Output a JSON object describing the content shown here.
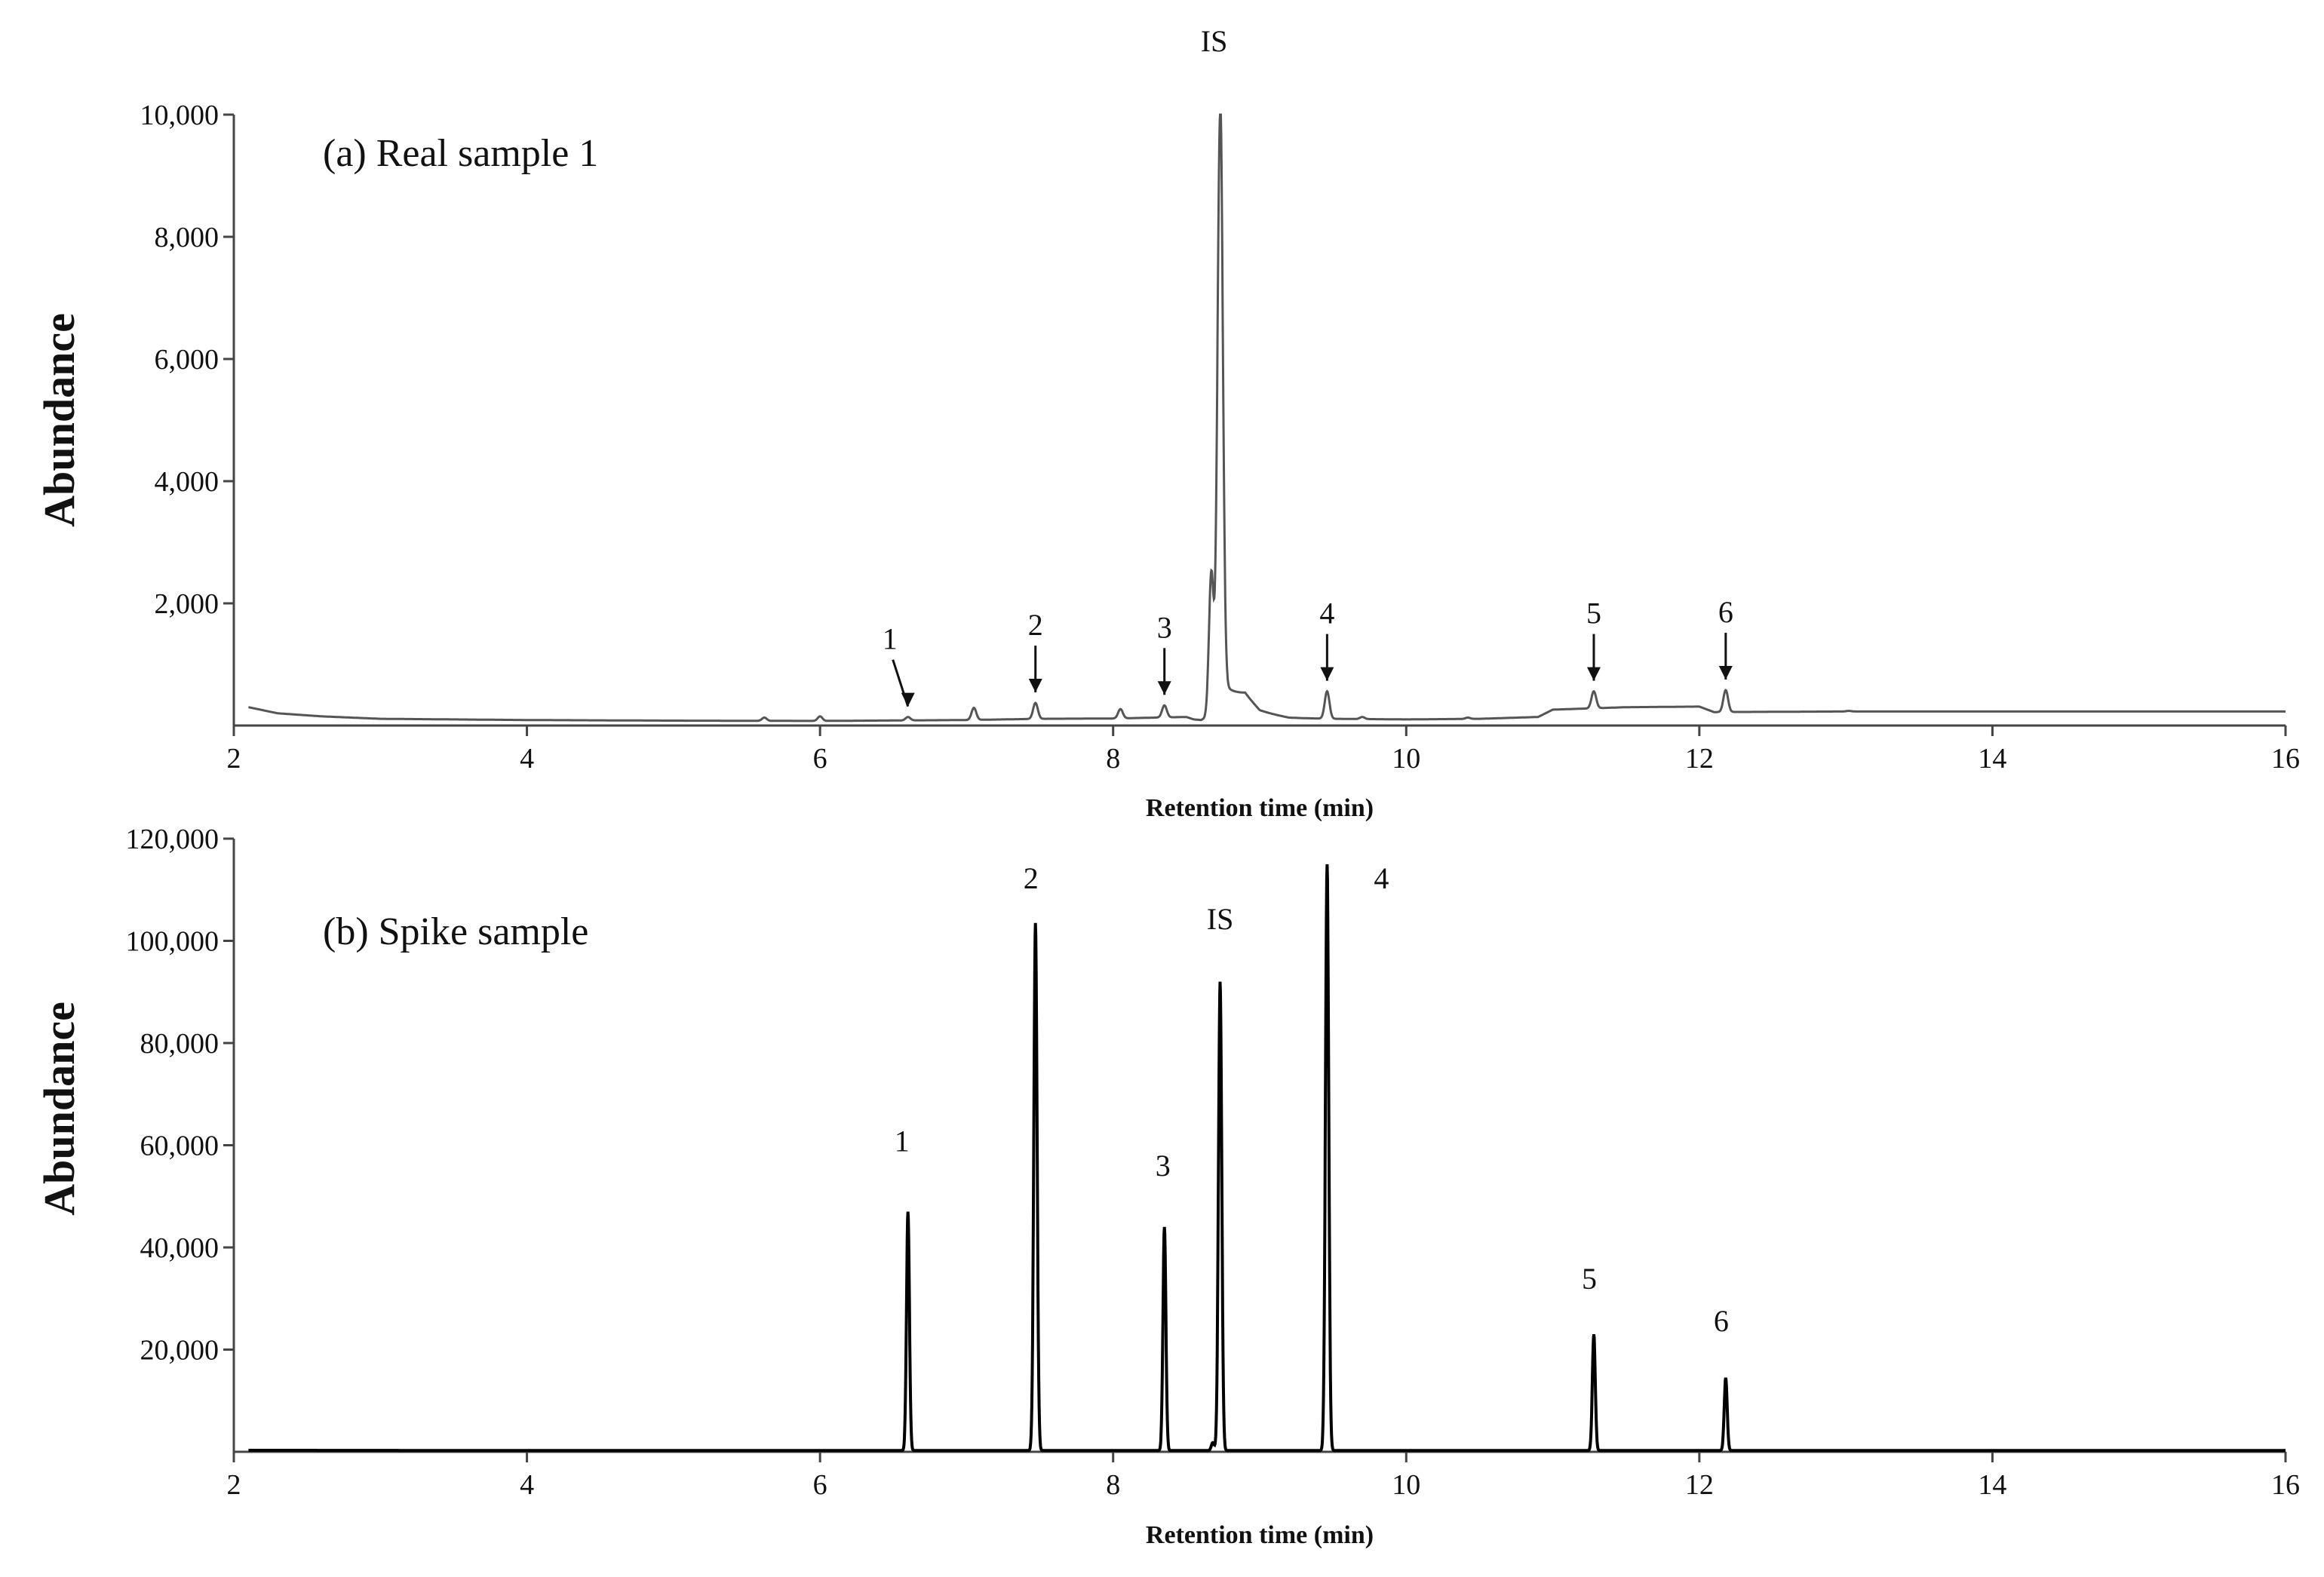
{
  "chart_data": [
    {
      "type": "line",
      "title": "(a) Real sample 1",
      "xlabel": "Retention time (min)",
      "ylabel": "Abundance",
      "xlim": [
        2,
        16
      ],
      "ylim": [
        0,
        10000
      ],
      "x_ticks": [
        "2",
        "4",
        "6",
        "8",
        "10",
        "12",
        "14",
        "16"
      ],
      "y_ticks": [
        "2,000",
        "4,000",
        "6,000",
        "8,000",
        "10,000"
      ],
      "grid": false,
      "baseline": [
        [
          2.1,
          300
        ],
        [
          2.3,
          200
        ],
        [
          2.6,
          150
        ],
        [
          3,
          110
        ],
        [
          4,
          90
        ],
        [
          5,
          80
        ],
        [
          6,
          75
        ],
        [
          7,
          90
        ],
        [
          7.5,
          110
        ],
        [
          8,
          115
        ],
        [
          8.5,
          140
        ],
        [
          8.55,
          100
        ],
        [
          8.6,
          90
        ],
        [
          8.9,
          420
        ],
        [
          9.0,
          200
        ],
        [
          9.2,
          120
        ],
        [
          9.5,
          110
        ],
        [
          10,
          100
        ],
        [
          10.5,
          110
        ],
        [
          10.9,
          140
        ],
        [
          11.0,
          260
        ],
        [
          11.5,
          300
        ],
        [
          12.0,
          310
        ],
        [
          12.1,
          220
        ],
        [
          13,
          230
        ],
        [
          14,
          230
        ],
        [
          15,
          230
        ],
        [
          16,
          230
        ]
      ],
      "peaks": [
        {
          "label": "1",
          "x": 6.6,
          "y": 140,
          "arrow": true
        },
        {
          "label": "2",
          "x": 7.47,
          "y": 370,
          "arrow": true
        },
        {
          "label": "3",
          "x": 8.35,
          "y": 330,
          "arrow": true
        },
        {
          "label": "IS",
          "x": 8.73,
          "y": 10000,
          "arrow": false
        },
        {
          "label": "4",
          "x": 9.46,
          "y": 560,
          "arrow": true
        },
        {
          "label": "5",
          "x": 11.28,
          "y": 560,
          "arrow": true
        },
        {
          "label": "6",
          "x": 12.18,
          "y": 580,
          "arrow": true
        }
      ],
      "minor_peaks": [
        {
          "x": 5.62,
          "y": 130
        },
        {
          "x": 6.0,
          "y": 150
        },
        {
          "x": 7.05,
          "y": 290
        },
        {
          "x": 8.05,
          "y": 270
        },
        {
          "x": 8.67,
          "y": 2500
        },
        {
          "x": 9.7,
          "y": 140
        },
        {
          "x": 10.42,
          "y": 130
        },
        {
          "x": 13.02,
          "y": 240
        }
      ]
    },
    {
      "type": "line",
      "title": "(b) Spike sample",
      "xlabel": "Retention time (min)",
      "ylabel": "Abundance",
      "xlim": [
        2,
        16
      ],
      "ylim": [
        0,
        120000
      ],
      "x_ticks": [
        "2",
        "4",
        "6",
        "8",
        "10",
        "12",
        "14",
        "16"
      ],
      "y_ticks": [
        "20,000",
        "40,000",
        "60,000",
        "80,000",
        "100,000",
        "120,000"
      ],
      "grid": false,
      "baseline": [
        [
          2.1,
          300
        ],
        [
          4,
          250
        ],
        [
          6,
          250
        ],
        [
          8,
          250
        ],
        [
          10,
          250
        ],
        [
          12,
          250
        ],
        [
          14,
          250
        ],
        [
          16,
          250
        ]
      ],
      "peaks": [
        {
          "label": "1",
          "x": 6.6,
          "y": 47000
        },
        {
          "label": "2",
          "x": 7.47,
          "y": 103500
        },
        {
          "label": "3",
          "x": 8.35,
          "y": 44000
        },
        {
          "label": "IS",
          "x": 8.73,
          "y": 92000
        },
        {
          "label": "4",
          "x": 9.46,
          "y": 115000
        },
        {
          "label": "5",
          "x": 11.28,
          "y": 23000
        },
        {
          "label": "6",
          "x": 12.18,
          "y": 14500
        }
      ],
      "minor_peaks": [
        {
          "x": 8.68,
          "y": 1800
        }
      ]
    }
  ]
}
